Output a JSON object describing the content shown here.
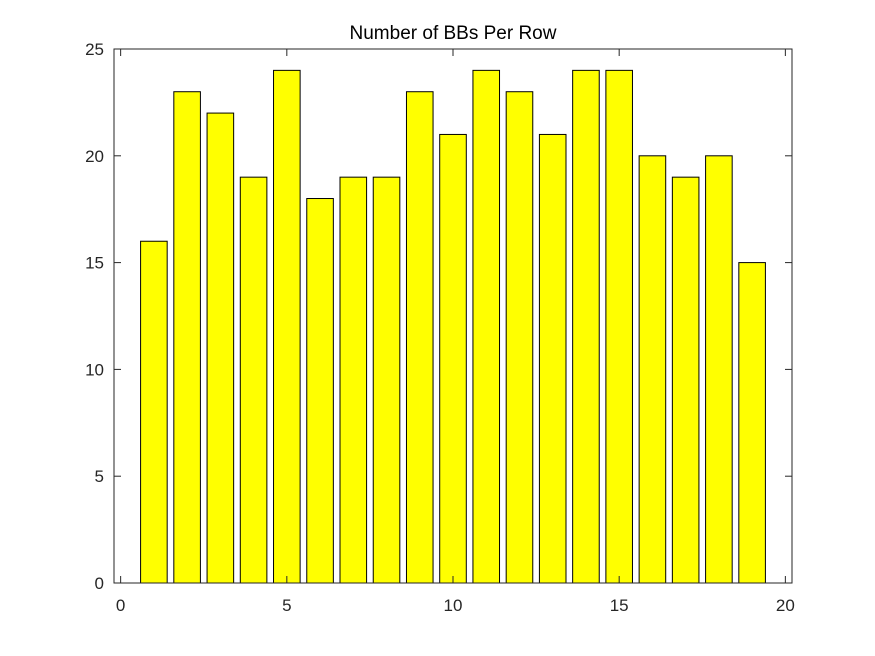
{
  "chart_data": {
    "type": "bar",
    "title": "Number of BBs Per Row",
    "xlabel": "",
    "ylabel": "",
    "x": [
      1,
      2,
      3,
      4,
      5,
      6,
      7,
      8,
      9,
      10,
      11,
      12,
      13,
      14,
      15,
      16,
      17,
      18,
      19
    ],
    "values": [
      16,
      23,
      22,
      19,
      24,
      18,
      19,
      19,
      23,
      21,
      24,
      23,
      21,
      24,
      24,
      20,
      19,
      20,
      15
    ],
    "xlim": [
      -0.2,
      20.2
    ],
    "ylim": [
      0,
      25
    ],
    "xticks": [
      0,
      5,
      10,
      15,
      20
    ],
    "yticks": [
      0,
      5,
      10,
      15,
      20,
      25
    ],
    "bar_color": "#ffff00",
    "edge_color": "#000000",
    "grid": false,
    "legend": "none"
  }
}
